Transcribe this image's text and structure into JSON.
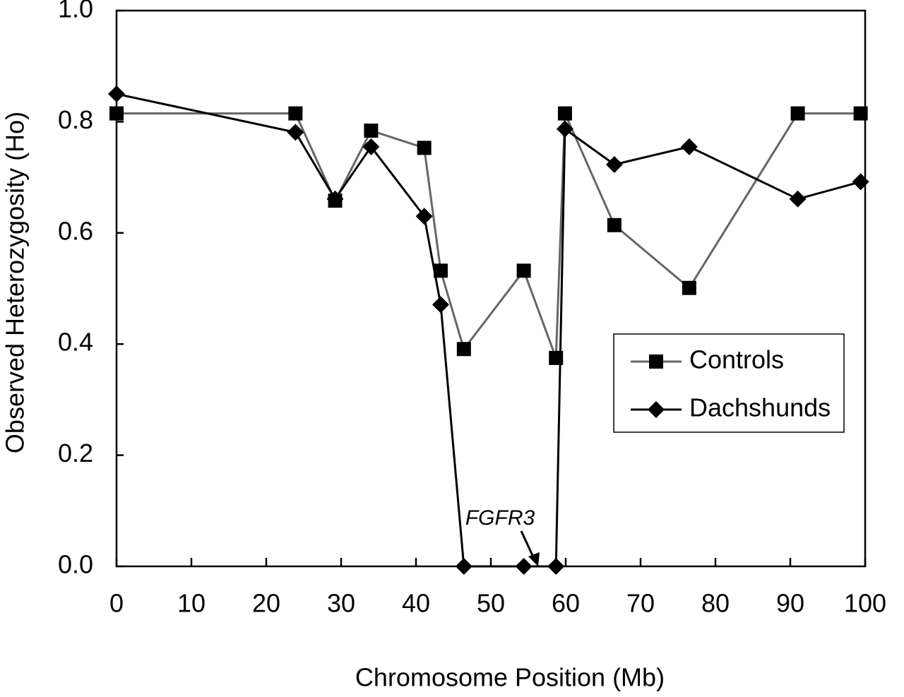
{
  "chart_data": {
    "type": "line",
    "x_label": "Chromosome Position (Mb)",
    "y_label": "Observed Heterozygosity (Ho)",
    "annotation": "FGFR3",
    "xlim": [
      0,
      100
    ],
    "xticks": [
      0,
      10,
      20,
      30,
      40,
      50,
      60,
      70,
      80,
      90,
      100
    ],
    "ylim": [
      0,
      1
    ],
    "yticks": [
      {
        "value": 0,
        "label": "0.0"
      },
      0.2,
      0.4,
      0.6,
      0.8,
      {
        "value": 1,
        "label": "1.0"
      }
    ],
    "legend": "right",
    "series": [
      {
        "name": "Controls",
        "color": "#666666",
        "marker": "square",
        "marker_color": "#000000",
        "x": [
          0,
          23.9,
          29.2,
          34.0,
          41.1,
          43.3,
          46.4,
          54.4,
          58.7,
          59.9,
          66.5,
          76.5,
          91.0,
          99.4
        ],
        "values": [
          0.815,
          0.815,
          0.658,
          0.784,
          0.753,
          0.532,
          0.391,
          0.532,
          0.375,
          0.815,
          0.614,
          0.501,
          0.815,
          0.815
        ]
      },
      {
        "name": "Dachshunds",
        "color": "#000000",
        "marker": "diamond",
        "marker_color": "#000000",
        "x": [
          0,
          23.9,
          29.2,
          34.0,
          41.1,
          43.3,
          46.4,
          54.4,
          58.7,
          59.9,
          66.5,
          76.5,
          91.0,
          99.4
        ],
        "values": [
          0.85,
          0.781,
          0.661,
          0.755,
          0.63,
          0.471,
          0,
          0,
          0,
          0.787,
          0.723,
          0.755,
          0.661,
          0.692
        ]
      }
    ]
  }
}
